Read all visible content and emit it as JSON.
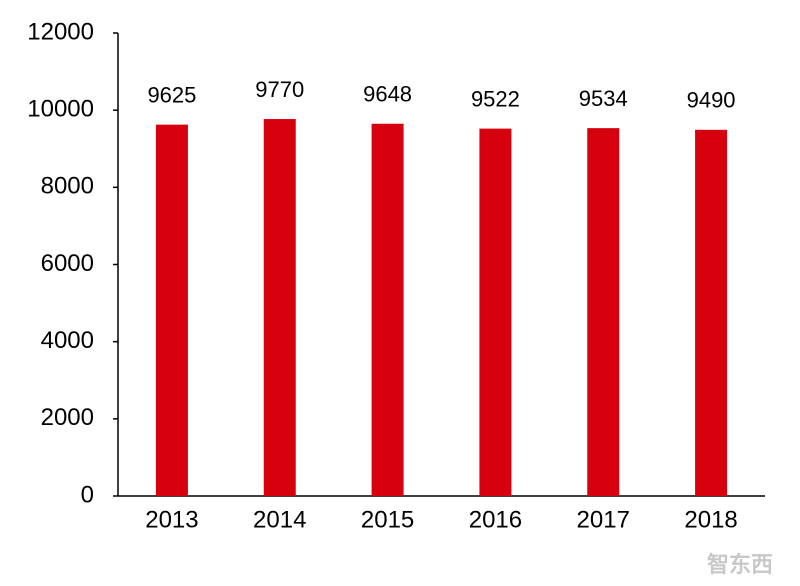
{
  "chart_data": {
    "type": "bar",
    "categories": [
      "2013",
      "2014",
      "2015",
      "2016",
      "2017",
      "2018"
    ],
    "values": [
      9625,
      9770,
      9648,
      9522,
      9534,
      9490
    ],
    "color": "#d7000f",
    "ylim": [
      0,
      12000
    ],
    "yticks": [
      0,
      2000,
      4000,
      6000,
      8000,
      10000,
      12000
    ],
    "grid": false,
    "watermark": "智东西"
  }
}
